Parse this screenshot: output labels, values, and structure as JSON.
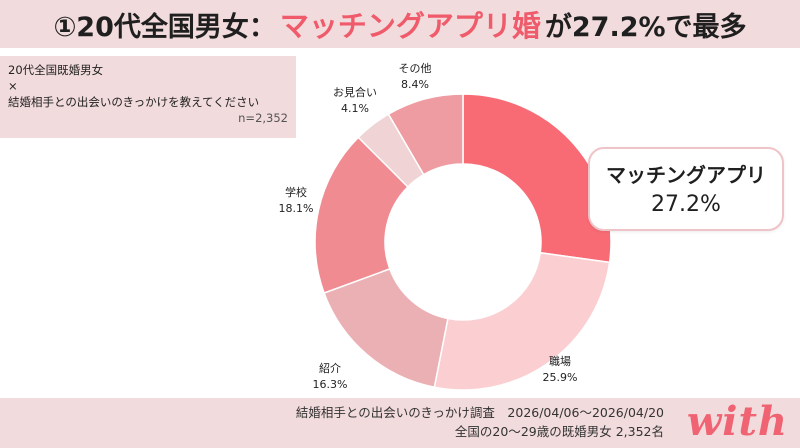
{
  "header": {
    "prefix": "①20代全国男女：",
    "highlight": "マッチングアプリ婚",
    "suffix": "が27.2%で最多"
  },
  "question": {
    "line1": "20代全国既婚男女",
    "line2": "×",
    "line3": "結婚相手との出会いのきっかけを教えてください",
    "n": "n=2,352"
  },
  "footer": {
    "line1": "結婚相手との出会いのきっかけ調査　2026/04/06〜2026/04/20",
    "line2": "全国の20〜29歳の既婚男女 2,352名",
    "logo": "with"
  },
  "callout": {
    "label": "マッチングアプリ",
    "value": "27.2%"
  },
  "chart_data": {
    "type": "pie",
    "donut": true,
    "categories": [
      "マッチングアプリ",
      "職場",
      "紹介",
      "学校",
      "お見合い",
      "その他"
    ],
    "values": [
      27.2,
      25.9,
      16.3,
      18.1,
      4.1,
      8.4
    ],
    "value_labels": [
      "27.2%",
      "25.9%",
      "16.3%",
      "18.1%",
      "4.1%",
      "8.4%"
    ],
    "colors": [
      "#f86b75",
      "#fbcfd1",
      "#ebb0b4",
      "#f08b92",
      "#efd3d5",
      "#ee9ca1"
    ]
  }
}
